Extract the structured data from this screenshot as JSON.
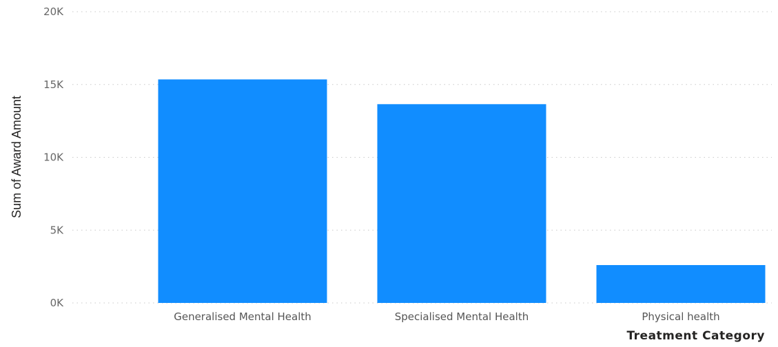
{
  "chart_data": {
    "type": "bar",
    "categories": [
      "Generalised Mental Health",
      "Specialised Mental Health",
      "Physical health"
    ],
    "values": [
      15350,
      13650,
      2600
    ],
    "title": "",
    "xlabel": "Treatment Category",
    "ylabel": "Sum of Award Amount",
    "ylim": [
      0,
      20000
    ],
    "yticks": [
      0,
      5000,
      10000,
      15000,
      20000
    ],
    "ytick_labels": [
      "0K",
      "5K",
      "10K",
      "15K",
      "20K"
    ],
    "bar_color": "#118DFF",
    "grid": true,
    "legend": "none"
  }
}
